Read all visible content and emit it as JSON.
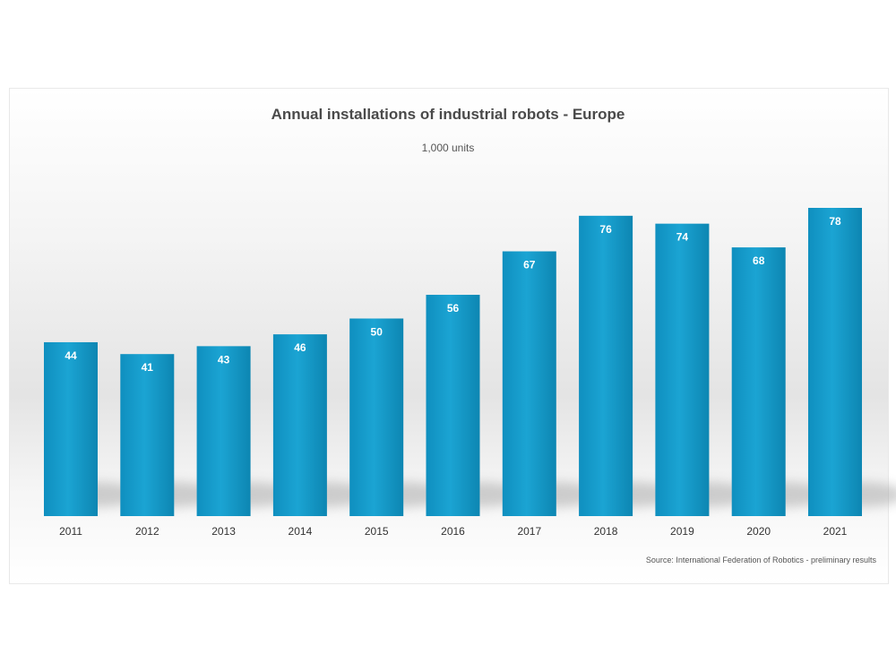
{
  "chart_data": {
    "type": "bar",
    "title": "Annual installations of industrial robots - Europe",
    "subtitle": "1,000 units",
    "categories": [
      "2011",
      "2012",
      "2013",
      "2014",
      "2015",
      "2016",
      "2017",
      "2018",
      "2019",
      "2020",
      "2021"
    ],
    "values": [
      44,
      41,
      43,
      46,
      50,
      56,
      67,
      76,
      74,
      68,
      78
    ],
    "source": "Source: International Federation of Robotics - preliminary results",
    "xlabel": "",
    "ylabel": "",
    "ylim": [
      0,
      78
    ],
    "grid": false,
    "legend": "none",
    "bar_color": "#159bc8",
    "bar_color_dark": "#0d86b2",
    "label_color": "#ffffff",
    "tick_color": "#333333"
  }
}
